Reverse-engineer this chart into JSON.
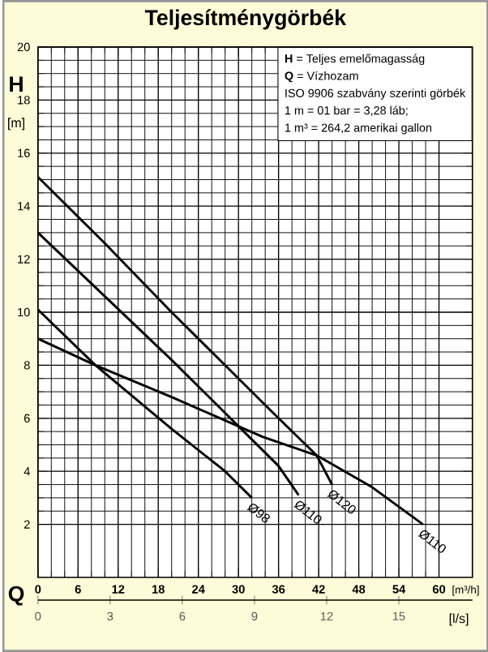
{
  "chart_data": {
    "type": "line",
    "title": "Teljesítménygörbék",
    "xlabel": "Q",
    "ylabel": "H",
    "x2label": "[l/s]",
    "xlim": [
      0,
      65
    ],
    "xticks": [
      0,
      6,
      12,
      18,
      24,
      30,
      36,
      42,
      48,
      54,
      60
    ],
    "x2lim": [
      0,
      18.06
    ],
    "x2ticks": [
      0,
      3,
      6,
      9,
      12,
      15
    ],
    "ylim": [
      0,
      20
    ],
    "yticks": [
      2,
      4,
      6,
      8,
      10,
      12,
      14,
      16,
      18,
      20
    ],
    "grid": true,
    "marker": "none",
    "line_style": "solid",
    "series": [
      {
        "color": "#000000",
        "x": [
          0,
          10,
          20,
          30,
          36,
          41.7,
          44
        ],
        "values": [
          15.1,
          12.6,
          10.0,
          7.5,
          6.0,
          4.6,
          3.5
        ]
      },
      {
        "color": "#000000",
        "x": [
          0,
          10,
          20,
          30,
          36,
          39
        ],
        "values": [
          13.0,
          10.6,
          8.2,
          5.7,
          4.2,
          3.1
        ]
      },
      {
        "color": "#000000",
        "x": [
          0,
          8.6,
          20,
          28,
          32
        ],
        "values": [
          10.1,
          8.0,
          5.6,
          4.0,
          3.0
        ]
      },
      {
        "color": "#000000",
        "x": [
          0,
          8.6,
          20,
          33.6,
          41.7,
          50,
          57.6
        ],
        "values": [
          9.0,
          8.0,
          6.8,
          5.3,
          4.6,
          3.4,
          2.0
        ]
      }
    ],
    "annotations": [
      "**H** = Teljes emelőmagasság",
      "**Q** = Vízhozam",
      "ISO 9906 szabvány szerinti görbék",
      "1 m = 01 bar = 3,28 láb;",
      "1 m³ = 264,2 amerikai gallon",
      "[m]",
      "[m³/h]",
      {
        "text": "Ø98",
        "x": 32,
        "y": 3.0
      },
      {
        "text": "Ø110",
        "x": 39,
        "y": 3.1
      },
      {
        "text": "Ø120",
        "x": 44,
        "y": 3.5
      },
      {
        "text": "Ø110",
        "x": 57.6,
        "y": 2.0
      }
    ]
  }
}
